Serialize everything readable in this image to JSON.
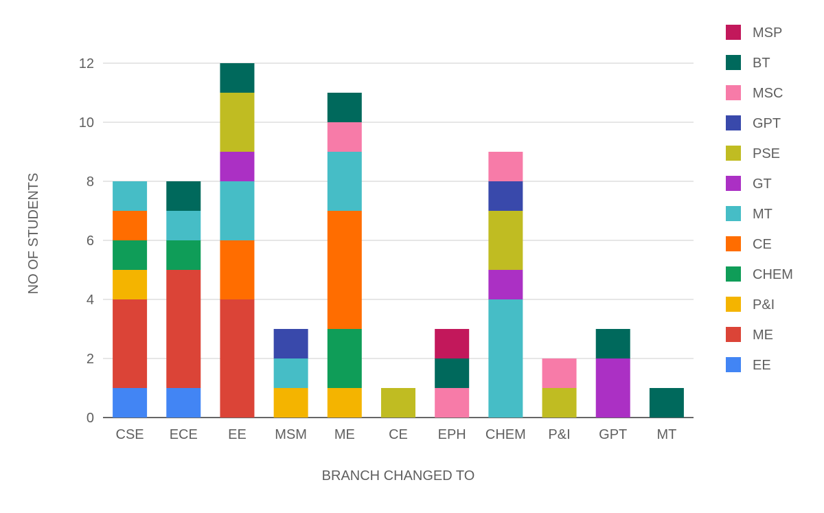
{
  "chart_data": {
    "type": "bar",
    "stacked": true,
    "title": "",
    "xlabel": "BRANCH CHANGED TO",
    "ylabel": "NO OF STUDENTS",
    "ylim": [
      0,
      12
    ],
    "yticks": [
      0,
      2,
      4,
      6,
      8,
      10,
      12
    ],
    "grid": true,
    "legend_position": "right",
    "categories": [
      "CSE",
      "ECE",
      "EE",
      "MSM",
      "ME",
      "CE",
      "EPH",
      "CHEM",
      "P&I",
      "GPT",
      "MT"
    ],
    "series": [
      {
        "name": "EE",
        "color": "#4285f4",
        "values": [
          1,
          1,
          0,
          0,
          0,
          0,
          0,
          0,
          0,
          0,
          0
        ]
      },
      {
        "name": "ME",
        "color": "#db4437",
        "values": [
          3,
          4,
          4,
          0,
          0,
          0,
          0,
          0,
          0,
          0,
          0
        ]
      },
      {
        "name": "P&I",
        "color": "#f4b400",
        "values": [
          1,
          0,
          0,
          1,
          1,
          0,
          0,
          0,
          0,
          0,
          0
        ]
      },
      {
        "name": "CHEM",
        "color": "#0f9d58",
        "values": [
          1,
          1,
          0,
          0,
          2,
          0,
          0,
          0,
          0,
          0,
          0
        ]
      },
      {
        "name": "CE",
        "color": "#ff6d00",
        "values": [
          1,
          0,
          2,
          0,
          4,
          0,
          0,
          0,
          0,
          0,
          0
        ]
      },
      {
        "name": "MT",
        "color": "#46bdc6",
        "values": [
          1,
          1,
          2,
          1,
          2,
          0,
          0,
          4,
          0,
          0,
          0
        ]
      },
      {
        "name": "GT",
        "color": "#ab30c4",
        "values": [
          0,
          0,
          1,
          0,
          0,
          0,
          0,
          1,
          0,
          2,
          0
        ]
      },
      {
        "name": "PSE",
        "color": "#c0bc22",
        "values": [
          0,
          0,
          2,
          0,
          0,
          1,
          0,
          2,
          1,
          0,
          0
        ]
      },
      {
        "name": "GPT",
        "color": "#3949ab",
        "values": [
          0,
          0,
          0,
          1,
          0,
          0,
          0,
          1,
          0,
          0,
          0
        ]
      },
      {
        "name": "MSC",
        "color": "#f77ba8",
        "values": [
          0,
          0,
          0,
          0,
          1,
          0,
          1,
          1,
          1,
          0,
          0
        ]
      },
      {
        "name": "BT",
        "color": "#00695c",
        "values": [
          0,
          1,
          1,
          0,
          1,
          0,
          1,
          0,
          0,
          1,
          1
        ]
      },
      {
        "name": "MSP",
        "color": "#c2185b",
        "values": [
          0,
          0,
          0,
          0,
          0,
          0,
          1,
          0,
          0,
          0,
          0
        ]
      }
    ]
  }
}
